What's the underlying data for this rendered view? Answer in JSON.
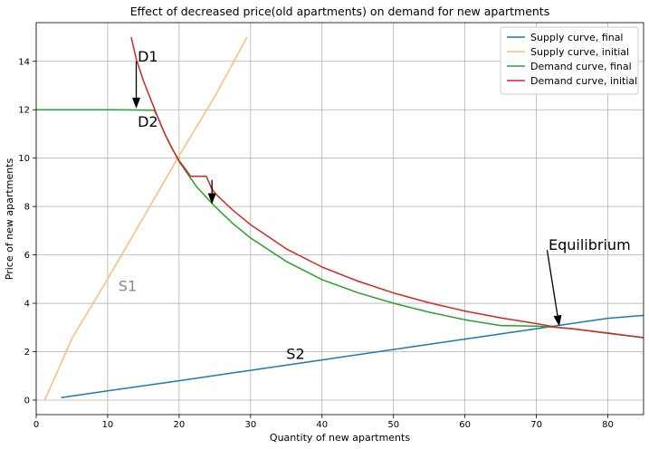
{
  "chart_data": {
    "type": "line",
    "title": "Effect of decreased price(old apartments) on demand for new apartments",
    "xlabel": "Quantity of new apartments",
    "ylabel": "Price of new apartments",
    "xlim": [
      0,
      85
    ],
    "ylim": [
      -0.6,
      15.6
    ],
    "xticks": [
      0,
      10,
      20,
      30,
      40,
      50,
      60,
      70,
      80
    ],
    "yticks": [
      0,
      2,
      4,
      6,
      8,
      10,
      12,
      14
    ],
    "grid": true,
    "legend_position": "upper-right",
    "series": [
      {
        "name": "Supply curve, final",
        "color": "#1f77b4",
        "x": [
          3.5,
          10,
          20,
          30,
          40,
          50,
          60,
          70,
          80,
          85
        ],
        "y": [
          0.1,
          0.38,
          0.8,
          1.23,
          1.66,
          2.09,
          2.52,
          2.95,
          3.38,
          3.5
        ]
      },
      {
        "name": "Supply curve, initial",
        "color": "#ffbb78",
        "x": [
          1.2,
          5,
          10,
          15,
          20,
          25,
          29.5
        ],
        "y": [
          0.0,
          2.55,
          5.0,
          7.55,
          10.1,
          12.55,
          15.0
        ]
      },
      {
        "name": "Demand curve, final",
        "color": "#2ca02c",
        "x": [
          0,
          10,
          16.5,
          17,
          18,
          20,
          22.5,
          25,
          27.5,
          30,
          35,
          40,
          45,
          50,
          55,
          60,
          65,
          70,
          73,
          75,
          80,
          85
        ],
        "y": [
          12.0,
          12.0,
          11.98,
          11.7,
          11.0,
          9.85,
          8.8,
          8.0,
          7.3,
          6.7,
          5.73,
          4.98,
          4.44,
          4.0,
          3.63,
          3.32,
          3.08,
          3.06,
          3.0,
          2.95,
          2.76,
          2.58
        ]
      },
      {
        "name": "Demand curve, initial",
        "color": "#d62728",
        "x": [
          13.3,
          14,
          15,
          16,
          17,
          18,
          19,
          20,
          21,
          21.6,
          23.8,
          24.5,
          25,
          27.5,
          30,
          35,
          40,
          45,
          50,
          55,
          60,
          65,
          70,
          73,
          75,
          80,
          85
        ],
        "y": [
          15.0,
          14.1,
          13.2,
          12.45,
          11.7,
          11.0,
          10.4,
          9.9,
          9.5,
          9.25,
          9.25,
          8.78,
          8.55,
          7.85,
          7.25,
          6.25,
          5.5,
          4.92,
          4.43,
          4.02,
          3.68,
          3.4,
          3.16,
          3.0,
          2.95,
          2.77,
          2.58
        ]
      }
    ],
    "annotations": [
      {
        "text": "D1",
        "x": 14.2,
        "y": 14.0,
        "color": "#000000"
      },
      {
        "text": "D2",
        "x": 14.2,
        "y": 11.3,
        "color": "#000000"
      },
      {
        "text": "S1",
        "x": 11.5,
        "y": 4.5,
        "color": "#888888"
      },
      {
        "text": "S2",
        "x": 35.0,
        "y": 1.7,
        "color": "#000000"
      },
      {
        "text": "Equilibrium",
        "x": 71.7,
        "y": 6.2,
        "color": "#000000"
      }
    ],
    "arrows": [
      {
        "from": [
          14.0,
          14.0
        ],
        "to": [
          14.0,
          12.05
        ]
      },
      {
        "from": [
          24.6,
          9.1
        ],
        "to": [
          24.6,
          8.1
        ]
      },
      {
        "from": [
          71.5,
          6.2
        ],
        "to": [
          73.2,
          3.05
        ]
      }
    ]
  }
}
